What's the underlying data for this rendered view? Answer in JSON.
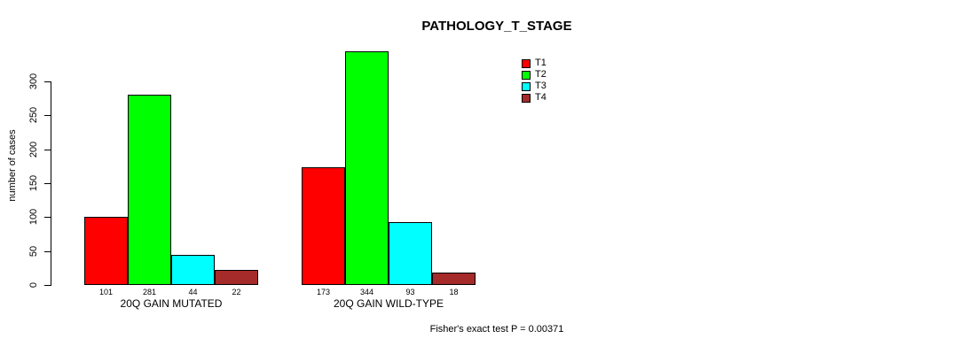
{
  "chart_data": {
    "type": "bar",
    "title": "PATHOLOGY_T_STAGE",
    "xlabel": "",
    "ylabel": "number of cases",
    "ylim": [
      0,
      300
    ],
    "yticks": [
      0,
      50,
      100,
      150,
      200,
      250,
      300
    ],
    "grid": false,
    "legend_position": "top-right",
    "categories": [
      "20Q GAIN MUTATED",
      "20Q GAIN WILD-TYPE"
    ],
    "series": [
      {
        "name": "T1",
        "color": "#FF0000",
        "values": [
          101,
          173
        ]
      },
      {
        "name": "T2",
        "color": "#00FF00",
        "values": [
          281,
          344
        ]
      },
      {
        "name": "T3",
        "color": "#00FFFF",
        "values": [
          44,
          93
        ]
      },
      {
        "name": "T4",
        "color": "#A52A2A",
        "values": [
          22,
          18
        ]
      }
    ],
    "bar_value_labels": [
      [
        101,
        281,
        44,
        22
      ],
      [
        173,
        344,
        93,
        18
      ]
    ],
    "annotation": "Fisher's exact test P = 0.00371",
    "colors": {
      "axis": "#000000",
      "text": "#000000",
      "background": "#FFFFFF"
    }
  }
}
